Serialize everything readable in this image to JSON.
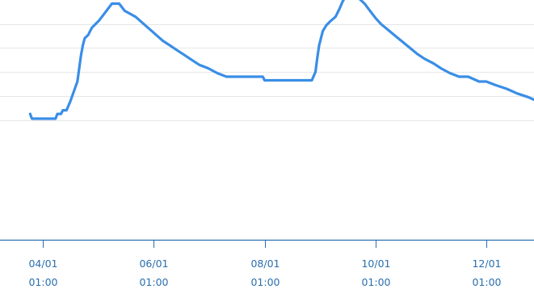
{
  "chart_data": {
    "type": "line",
    "grid": "horizontal",
    "legend": "none",
    "title": "",
    "xlabel": "",
    "ylabel": "",
    "ylim": [
      0,
      10
    ],
    "y_gridlines": [
      5,
      6,
      7,
      8,
      9
    ],
    "xlim": [
      "2024-03-25",
      "2025-01-05"
    ],
    "x_tick_labels": [
      {
        "date": "2024-04-01",
        "line1": "04/01",
        "line2": "01:00"
      },
      {
        "date": "2024-06-01",
        "line1": "06/01",
        "line2": "01:00"
      },
      {
        "date": "2024-08-01",
        "line1": "08/01",
        "line2": "01:00"
      },
      {
        "date": "2024-10-01",
        "line1": "10/01",
        "line2": "01:00"
      },
      {
        "date": "2024-12-01",
        "line1": "12/01",
        "line2": "01:00"
      }
    ],
    "colors": {
      "series": "#3a8ee6",
      "grid": "#e6e6e6",
      "axis": "#2a6fae",
      "tick_label": "#2a6fae"
    },
    "series": [
      {
        "x": [
          "2024-03-25",
          "2024-03-26",
          "2024-03-31",
          "2024-04-01",
          "2024-04-08",
          "2024-04-09",
          "2024-04-11",
          "2024-04-12",
          "2024-04-14",
          "2024-04-16",
          "2024-04-20",
          "2024-04-22",
          "2024-04-23",
          "2024-04-24",
          "2024-04-26",
          "2024-04-27",
          "2024-04-28",
          "2024-04-30",
          "2024-05-02",
          "2024-05-04",
          "2024-05-06",
          "2024-05-09",
          "2024-05-13",
          "2024-05-16",
          "2024-05-22",
          "2024-05-25",
          "2024-05-28",
          "2024-05-31",
          "2024-06-03",
          "2024-06-06",
          "2024-06-10",
          "2024-06-14",
          "2024-06-18",
          "2024-06-22",
          "2024-06-26",
          "2024-07-01",
          "2024-07-06",
          "2024-07-11",
          "2024-07-15",
          "2024-07-31",
          "2024-08-01",
          "2024-08-25",
          "2024-08-27",
          "2024-08-29",
          "2024-08-30",
          "2024-08-31",
          "2024-09-02",
          "2024-09-04",
          "2024-09-06",
          "2024-09-09",
          "2024-09-11",
          "2024-09-13",
          "2024-09-15",
          "2024-09-18",
          "2024-09-20",
          "2024-09-25",
          "2024-09-28",
          "2024-10-01",
          "2024-10-04",
          "2024-10-08",
          "2024-10-12",
          "2024-10-16",
          "2024-10-20",
          "2024-10-24",
          "2024-10-28",
          "2024-11-02",
          "2024-11-06",
          "2024-11-11",
          "2024-11-16",
          "2024-11-21",
          "2024-11-27",
          "2024-12-01",
          "2024-12-06",
          "2024-12-12",
          "2024-12-18",
          "2024-12-24",
          "2024-12-30",
          "2025-01-03",
          "2025-01-05"
        ],
        "values": [
          5.25,
          5.05,
          5.05,
          5.05,
          5.05,
          5.25,
          5.25,
          5.4,
          5.4,
          5.75,
          6.6,
          7.7,
          8.1,
          8.4,
          8.55,
          8.7,
          8.85,
          9.0,
          9.15,
          9.35,
          9.55,
          9.85,
          9.85,
          9.55,
          9.3,
          9.1,
          8.9,
          8.7,
          8.5,
          8.3,
          8.1,
          7.9,
          7.7,
          7.5,
          7.3,
          7.15,
          6.95,
          6.8,
          6.8,
          6.8,
          6.65,
          6.65,
          6.65,
          7.0,
          7.6,
          8.1,
          8.7,
          8.95,
          9.1,
          9.3,
          9.6,
          9.95,
          10.2,
          10.2,
          10.2,
          9.85,
          9.55,
          9.25,
          9.0,
          8.75,
          8.5,
          8.25,
          8.0,
          7.75,
          7.55,
          7.35,
          7.15,
          6.95,
          6.8,
          6.8,
          6.6,
          6.6,
          6.45,
          6.3,
          6.1,
          5.95,
          5.75,
          5.55,
          5.5
        ]
      }
    ]
  }
}
